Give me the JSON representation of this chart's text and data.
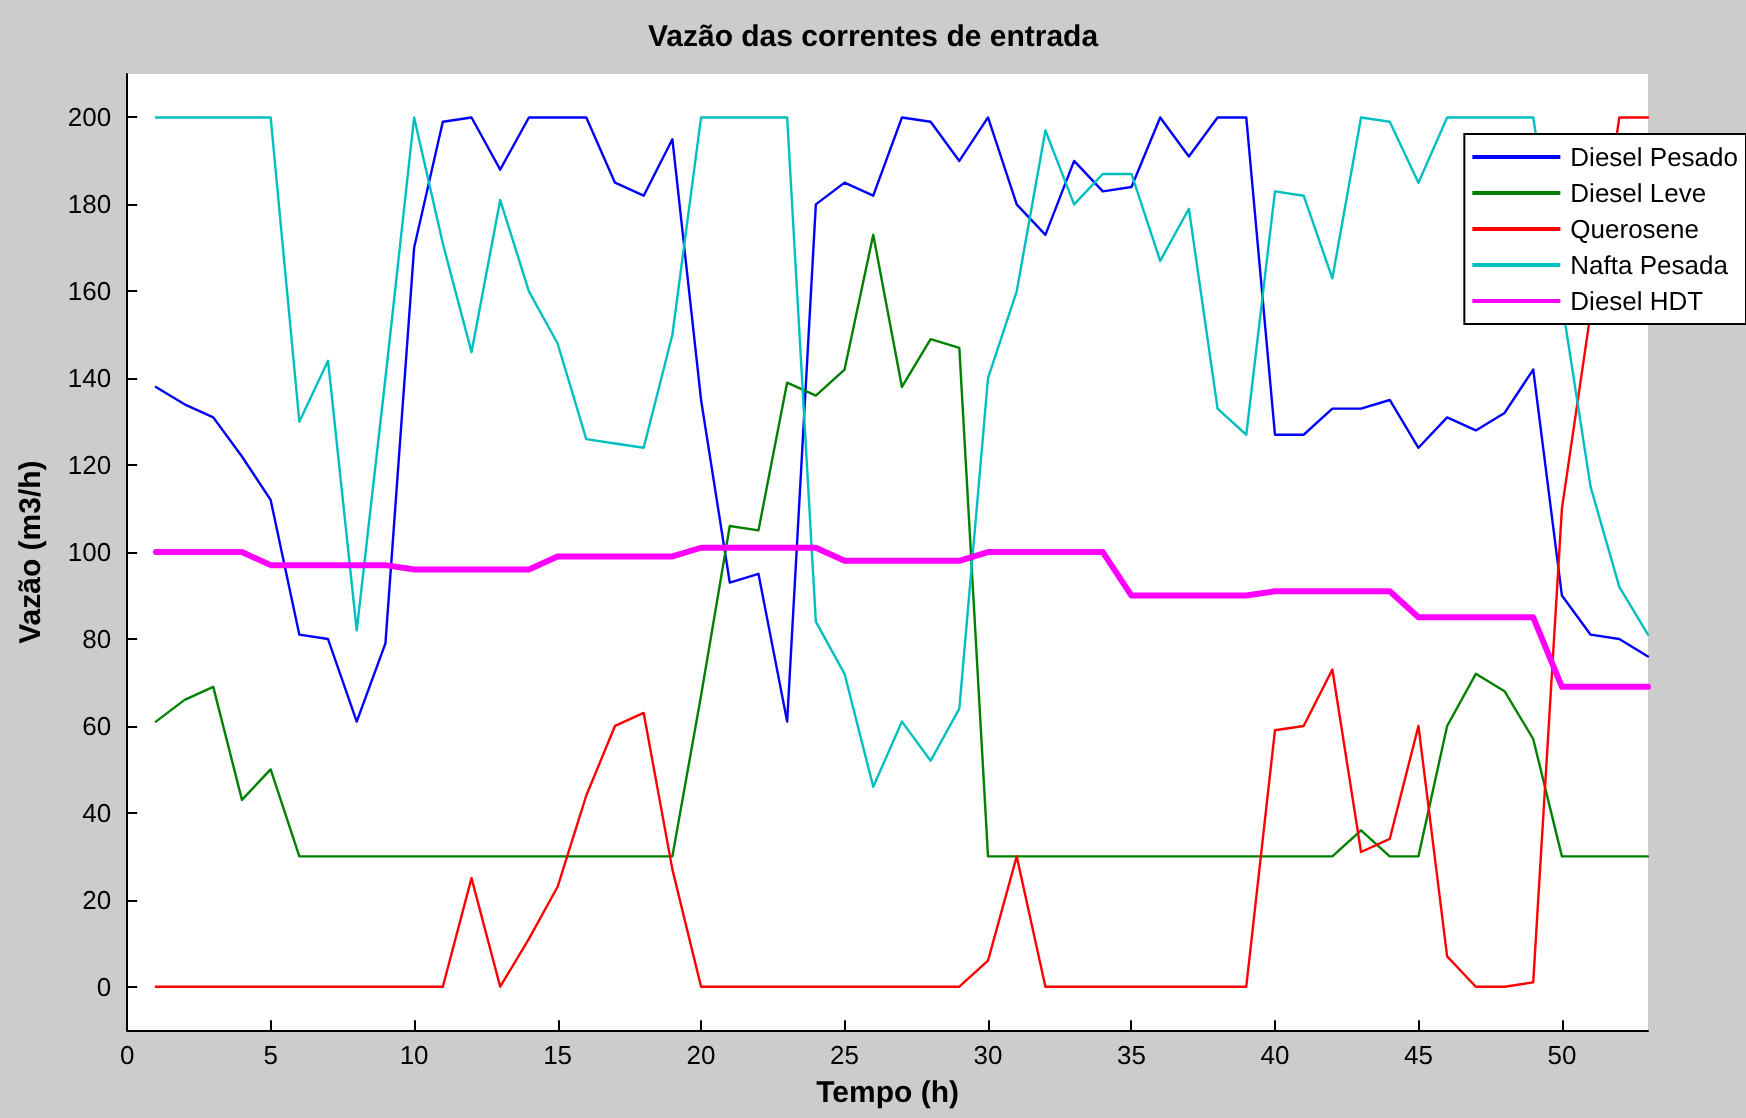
{
  "chart_data": {
    "type": "line",
    "title": "Vazão das correntes de entrada",
    "xlabel": "Tempo (h)",
    "ylabel": "Vazão (m3/h)",
    "x": [
      1,
      2,
      3,
      4,
      5,
      6,
      7,
      8,
      9,
      10,
      11,
      12,
      13,
      14,
      15,
      16,
      17,
      18,
      19,
      20,
      21,
      22,
      23,
      24,
      25,
      26,
      27,
      28,
      29,
      30,
      31,
      32,
      33,
      34,
      35,
      36,
      37,
      38,
      39,
      40,
      41,
      42,
      43,
      44,
      45,
      46,
      47,
      48,
      49,
      50,
      51,
      52,
      53
    ],
    "series": [
      {
        "name": "Diesel Pesado",
        "color": "#0000ff",
        "values": [
          138,
          134,
          131,
          122,
          112,
          81,
          80,
          61,
          79,
          170,
          199,
          200,
          188,
          200,
          200,
          200,
          185,
          182,
          195,
          135,
          93,
          95,
          61,
          180,
          185,
          182,
          200,
          199,
          190,
          200,
          180,
          173,
          190,
          183,
          184,
          200,
          191,
          200,
          200,
          127,
          127,
          133,
          133,
          135,
          124,
          131,
          128,
          132,
          142,
          90,
          81,
          80,
          76
        ]
      },
      {
        "name": "Diesel Leve",
        "color": "#008000",
        "values": [
          61,
          66,
          69,
          43,
          50,
          30,
          30,
          30,
          30,
          30,
          30,
          30,
          30,
          30,
          30,
          30,
          30,
          30,
          30,
          67,
          106,
          105,
          139,
          136,
          142,
          173,
          138,
          149,
          147,
          30,
          30,
          30,
          30,
          30,
          30,
          30,
          30,
          30,
          30,
          30,
          30,
          30,
          36,
          30,
          30,
          60,
          72,
          68,
          57,
          30,
          30,
          30,
          30
        ]
      },
      {
        "name": "Querosene",
        "color": "#ff0000",
        "values": [
          0,
          0,
          0,
          0,
          0,
          0,
          0,
          0,
          0,
          0,
          0,
          25,
          0,
          11,
          23,
          44,
          60,
          63,
          27,
          0,
          0,
          0,
          0,
          0,
          0,
          0,
          0,
          0,
          0,
          6,
          30,
          0,
          0,
          0,
          0,
          0,
          0,
          0,
          0,
          59,
          60,
          73,
          31,
          34,
          60,
          7,
          0,
          0,
          1,
          110,
          null,
          200,
          200
        ]
      },
      {
        "name": "Nafta Pesada",
        "color": "#00bfbf",
        "values": [
          200,
          200,
          200,
          200,
          200,
          130,
          144,
          82,
          140,
          200,
          171,
          146,
          181,
          160,
          148,
          126,
          125,
          124,
          150,
          200,
          200,
          200,
          200,
          84,
          72,
          46,
          61,
          52,
          64,
          140,
          160,
          197,
          180,
          187,
          187,
          167,
          179,
          133,
          127,
          183,
          182,
          163,
          200,
          199,
          185,
          200,
          200,
          200,
          200,
          null,
          115,
          92,
          81
        ]
      },
      {
        "name": "Diesel HDT",
        "color": "#ff00ff",
        "values": [
          100,
          100,
          100,
          100,
          97,
          97,
          97,
          97,
          97,
          96,
          96,
          96,
          96,
          96,
          99,
          99,
          99,
          99,
          99,
          101,
          101,
          101,
          101,
          101,
          98,
          98,
          98,
          98,
          98,
          100,
          100,
          100,
          100,
          100,
          90,
          90,
          90,
          90,
          90,
          91,
          91,
          91,
          91,
          91,
          85,
          85,
          85,
          85,
          85,
          69,
          69,
          69,
          69
        ]
      }
    ],
    "xlim": [
      0,
      53
    ],
    "xticks": [
      0,
      5,
      10,
      15,
      20,
      25,
      30,
      35,
      40,
      45,
      50
    ],
    "ylim": [
      -10,
      210
    ],
    "yticks": [
      0,
      20,
      40,
      60,
      80,
      100,
      120,
      140,
      160,
      180,
      200
    ],
    "grid": false,
    "legend": "top right",
    "marker": "none",
    "line_style": "solid"
  }
}
